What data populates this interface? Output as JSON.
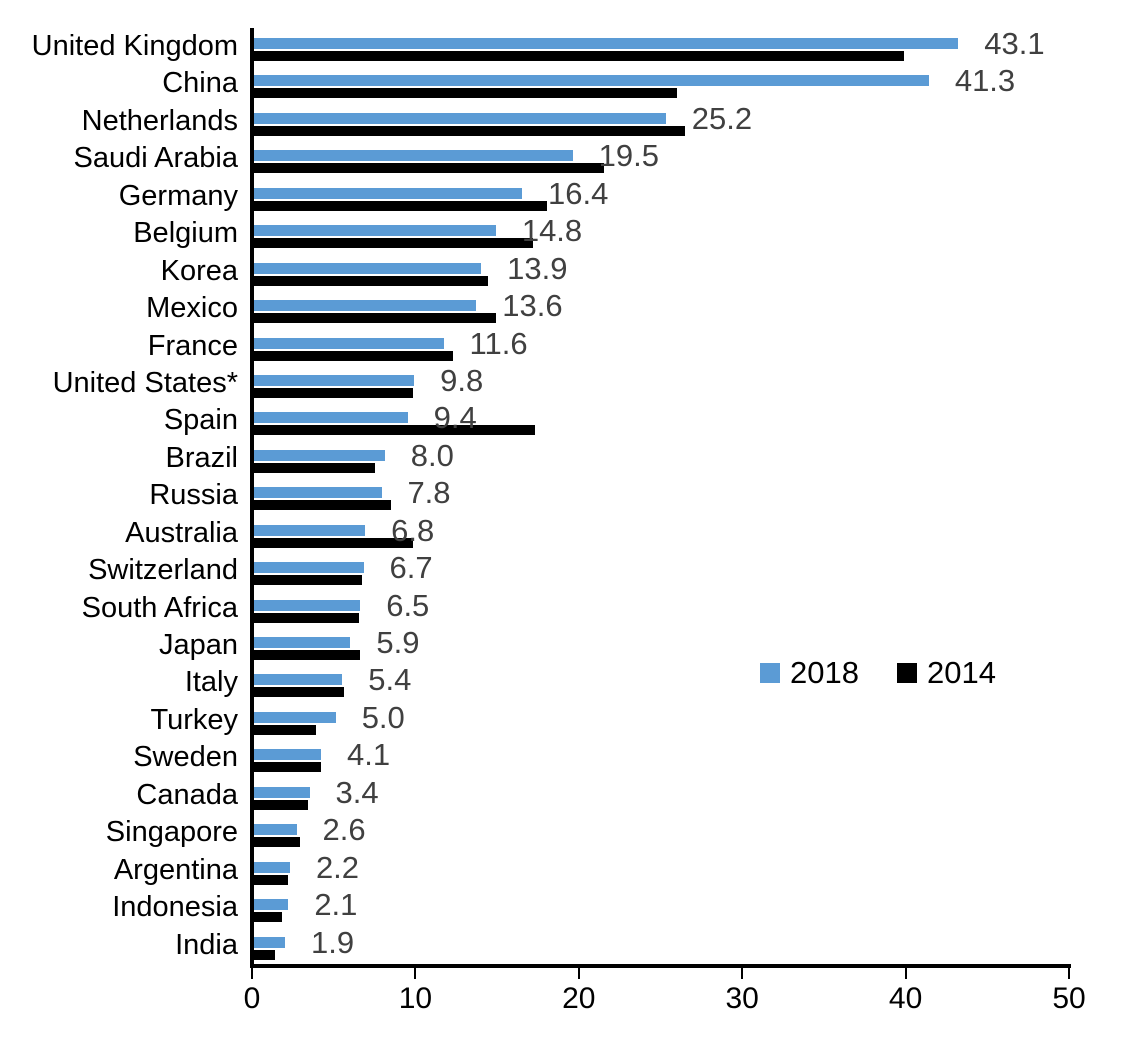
{
  "chart_data": {
    "type": "bar",
    "orientation": "horizontal",
    "title": "",
    "xlabel": "",
    "ylabel": "",
    "xlim": [
      0,
      50
    ],
    "x_ticks": [
      0,
      10,
      20,
      30,
      40,
      50
    ],
    "grid": false,
    "legend_position": "middle-right",
    "categories": [
      "United Kingdom",
      "China",
      "Netherlands",
      "Saudi Arabia",
      "Germany",
      "Belgium",
      "Korea",
      "Mexico",
      "France",
      "United States*",
      "Spain",
      "Brazil",
      "Russia",
      "Australia",
      "Switzerland",
      "South Africa",
      "Japan",
      "Italy",
      "Turkey",
      "Sweden",
      "Canada",
      "Singapore",
      "Argentina",
      "Indonesia",
      "India"
    ],
    "series": [
      {
        "name": "2018",
        "color": "#5B9BD5",
        "values": [
          43.1,
          41.3,
          25.2,
          19.5,
          16.4,
          14.8,
          13.9,
          13.6,
          11.6,
          9.8,
          9.4,
          8.0,
          7.8,
          6.8,
          6.7,
          6.5,
          5.9,
          5.4,
          5.0,
          4.1,
          3.4,
          2.6,
          2.2,
          2.1,
          1.9
        ]
      },
      {
        "name": "2014",
        "color": "#000000",
        "values": [
          39.8,
          25.9,
          26.4,
          21.4,
          17.9,
          17.1,
          14.3,
          14.8,
          12.2,
          9.7,
          17.2,
          7.4,
          8.4,
          9.7,
          6.6,
          6.4,
          6.5,
          5.5,
          3.8,
          4.1,
          3.3,
          2.8,
          2.1,
          1.7,
          1.3
        ]
      }
    ],
    "data_labels": {
      "on_series": "2018",
      "color": "#404040",
      "values": [
        "43.1",
        "41.3",
        "25.2",
        "19.5",
        "16.4",
        "14.8",
        "13.9",
        "13.6",
        "11.6",
        "9.8",
        "9.4",
        "8.0",
        "7.8",
        "6.8",
        "6.7",
        "6.5",
        "5.9",
        "5.4",
        "5.0",
        "4.1",
        "3.4",
        "2.6",
        "2.2",
        "2.1",
        "1.9"
      ]
    },
    "axis_color": "#000000"
  },
  "legend": {
    "entries": [
      {
        "label": "2018",
        "color": "#5B9BD5"
      },
      {
        "label": "2014",
        "color": "#000000"
      }
    ]
  }
}
